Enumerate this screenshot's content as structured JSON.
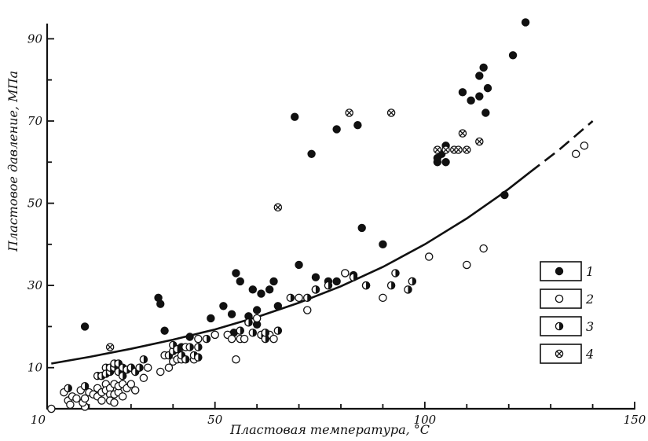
{
  "chart_data": {
    "type": "scatter",
    "xlabel": "Пластовая температура, °С",
    "ylabel": "Пластовое давление, МПа",
    "xlim": [
      10,
      150
    ],
    "ylim": [
      0,
      96
    ],
    "x_ticks": [
      10,
      50,
      100,
      150
    ],
    "x_ticks_minor": [
      20,
      30,
      40,
      60,
      70,
      80,
      90,
      110,
      120,
      130,
      140
    ],
    "y_ticks": [
      10,
      30,
      50,
      70,
      90
    ],
    "y_ticks_minor": [
      20,
      40,
      60,
      80
    ],
    "legend_position": "right",
    "series": [
      {
        "name": "1",
        "marker": "filled",
        "points": [
          [
            19,
            20
          ],
          [
            30,
            10
          ],
          [
            36.5,
            27
          ],
          [
            37,
            25.5
          ],
          [
            38,
            19
          ],
          [
            42,
            15
          ],
          [
            44,
            17.5
          ],
          [
            49,
            22
          ],
          [
            52,
            25
          ],
          [
            54,
            23
          ],
          [
            54.5,
            18.5
          ],
          [
            55,
            33
          ],
          [
            56,
            31
          ],
          [
            58,
            22.5
          ],
          [
            59,
            29
          ],
          [
            60,
            24
          ],
          [
            60,
            20.5
          ],
          [
            61,
            28
          ],
          [
            63,
            29
          ],
          [
            64,
            31
          ],
          [
            65,
            25
          ],
          [
            70,
            35
          ],
          [
            69,
            71
          ],
          [
            73,
            62
          ],
          [
            74,
            32
          ],
          [
            77,
            31
          ],
          [
            79,
            31
          ],
          [
            79,
            68
          ],
          [
            81,
            33
          ],
          [
            83,
            32.5
          ],
          [
            84,
            69
          ],
          [
            85,
            44
          ],
          [
            90,
            40
          ],
          [
            103,
            60
          ],
          [
            103,
            61
          ],
          [
            104,
            62
          ],
          [
            105,
            64
          ],
          [
            105,
            60
          ],
          [
            109,
            77
          ],
          [
            111,
            75
          ],
          [
            113,
            76
          ],
          [
            113,
            81
          ],
          [
            114,
            83
          ],
          [
            114.5,
            72
          ],
          [
            115,
            78
          ],
          [
            119,
            52
          ],
          [
            121,
            86
          ],
          [
            124,
            94
          ]
        ]
      },
      {
        "name": "2",
        "marker": "open",
        "points": [
          [
            11,
            0
          ],
          [
            14,
            4
          ],
          [
            15,
            2
          ],
          [
            15.5,
            1
          ],
          [
            16,
            3
          ],
          [
            17,
            2.5
          ],
          [
            18,
            4.5
          ],
          [
            19,
            0.5
          ],
          [
            18.5,
            1.5
          ],
          [
            19,
            2.5
          ],
          [
            20,
            4
          ],
          [
            21,
            3.5
          ],
          [
            22,
            5
          ],
          [
            22,
            3
          ],
          [
            23,
            4
          ],
          [
            23,
            2
          ],
          [
            24,
            6
          ],
          [
            24,
            4.5
          ],
          [
            25,
            5
          ],
          [
            25,
            3.5
          ],
          [
            25,
            2
          ],
          [
            26,
            6
          ],
          [
            26,
            3.5
          ],
          [
            26,
            1.5
          ],
          [
            27,
            4
          ],
          [
            27,
            5.5
          ],
          [
            28,
            6
          ],
          [
            28,
            3
          ],
          [
            29,
            5
          ],
          [
            30,
            6
          ],
          [
            31,
            4.5
          ],
          [
            33,
            7.5
          ],
          [
            34,
            10
          ],
          [
            37,
            9
          ],
          [
            38,
            13
          ],
          [
            39,
            10
          ],
          [
            40,
            11.5
          ],
          [
            41,
            12
          ],
          [
            42,
            12
          ],
          [
            43,
            15
          ],
          [
            45,
            12
          ],
          [
            46,
            17
          ],
          [
            50,
            18
          ],
          [
            53,
            18
          ],
          [
            54,
            17
          ],
          [
            55,
            12
          ],
          [
            56,
            17
          ],
          [
            57,
            17
          ],
          [
            58,
            21
          ],
          [
            60,
            22
          ],
          [
            63,
            18
          ],
          [
            64,
            17
          ],
          [
            70,
            27
          ],
          [
            72,
            24
          ],
          [
            74,
            29
          ],
          [
            81,
            33
          ],
          [
            86,
            30
          ],
          [
            90,
            27
          ],
          [
            101,
            37
          ],
          [
            110,
            35
          ],
          [
            114,
            39
          ],
          [
            136,
            62
          ],
          [
            138,
            64
          ]
        ]
      },
      {
        "name": "3",
        "marker": "half",
        "points": [
          [
            15,
            5
          ],
          [
            19,
            5.5
          ],
          [
            22,
            8
          ],
          [
            23,
            8
          ],
          [
            24,
            10
          ],
          [
            24,
            8.5
          ],
          [
            25,
            9
          ],
          [
            25,
            10
          ],
          [
            26,
            10
          ],
          [
            26,
            11
          ],
          [
            27,
            11
          ],
          [
            27,
            9
          ],
          [
            28,
            10
          ],
          [
            28,
            8
          ],
          [
            29,
            9.5
          ],
          [
            30,
            10
          ],
          [
            31,
            9
          ],
          [
            32,
            10
          ],
          [
            33,
            12
          ],
          [
            39,
            13
          ],
          [
            40,
            14
          ],
          [
            40,
            15.5
          ],
          [
            41,
            14.5
          ],
          [
            42,
            13
          ],
          [
            43,
            12
          ],
          [
            44,
            15
          ],
          [
            45,
            13
          ],
          [
            46,
            12.5
          ],
          [
            46,
            15
          ],
          [
            48,
            17
          ],
          [
            56,
            19
          ],
          [
            58,
            21
          ],
          [
            59,
            18.5
          ],
          [
            61,
            18
          ],
          [
            62,
            17
          ],
          [
            62,
            18.5
          ],
          [
            65,
            19
          ],
          [
            68,
            27
          ],
          [
            72,
            27
          ],
          [
            74,
            29
          ],
          [
            77,
            30
          ],
          [
            83,
            32
          ],
          [
            86,
            30
          ],
          [
            92,
            30
          ],
          [
            93,
            33
          ],
          [
            96,
            29
          ],
          [
            97,
            31
          ]
        ]
      },
      {
        "name": "4",
        "marker": "cross",
        "points": [
          [
            25,
            15
          ],
          [
            65,
            49
          ],
          [
            82,
            72
          ],
          [
            92,
            72
          ],
          [
            103,
            63
          ],
          [
            105,
            63
          ],
          [
            107,
            63
          ],
          [
            108,
            63
          ],
          [
            109,
            67
          ],
          [
            110,
            63
          ],
          [
            113,
            65
          ]
        ]
      }
    ],
    "curve": {
      "solid": [
        [
          11,
          11
        ],
        [
          20,
          12.6
        ],
        [
          30,
          14.6
        ],
        [
          40,
          16.8
        ],
        [
          50,
          19.3
        ],
        [
          60,
          22.3
        ],
        [
          70,
          25.8
        ],
        [
          80,
          29.8
        ],
        [
          90,
          34.5
        ],
        [
          100,
          40
        ],
        [
          110,
          46.3
        ],
        [
          118,
          52
        ],
        [
          120,
          53.5
        ],
        [
          125,
          57.5
        ]
      ],
      "dashed": [
        [
          125,
          57.5
        ],
        [
          132,
          63
        ],
        [
          140,
          70
        ]
      ]
    }
  }
}
